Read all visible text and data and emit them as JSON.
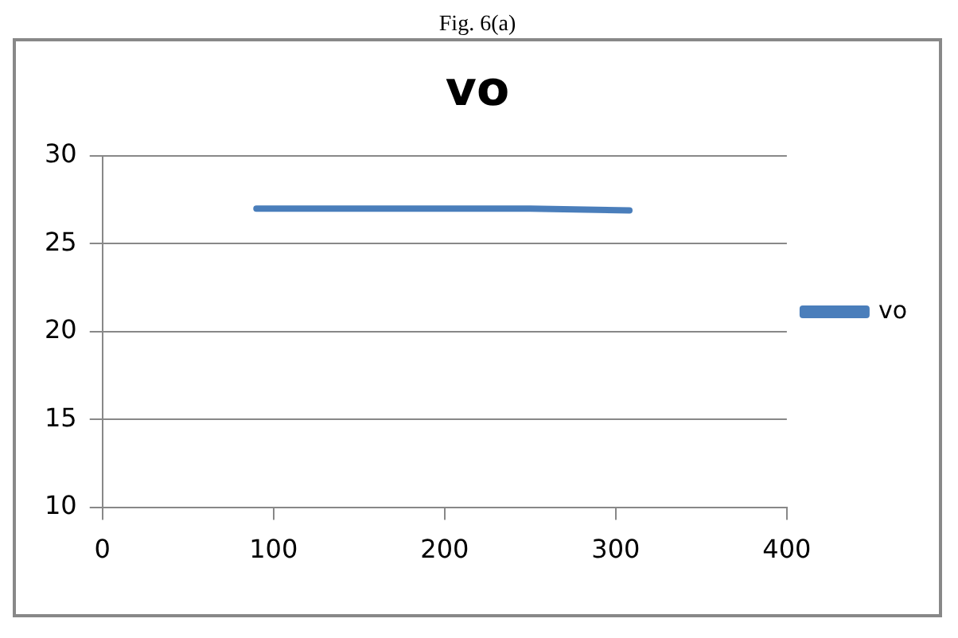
{
  "chart_data": {
    "type": "line",
    "title": "vo",
    "annotations": [
      "Fig. 6(a)"
    ],
    "x": [
      90,
      150,
      200,
      250,
      308
    ],
    "series": [
      {
        "name": "vo",
        "color": "#4a7ebb",
        "values": [
          27,
          27,
          27,
          27,
          26.9
        ]
      }
    ],
    "xlim": [
      0,
      400
    ],
    "xticks": [
      0,
      100,
      200,
      300,
      400
    ],
    "ylim": [
      10,
      30
    ],
    "yticks": [
      10,
      15,
      20,
      25,
      30
    ],
    "grid": "y",
    "legend": "right",
    "marker": "none",
    "line_style": "solid"
  }
}
